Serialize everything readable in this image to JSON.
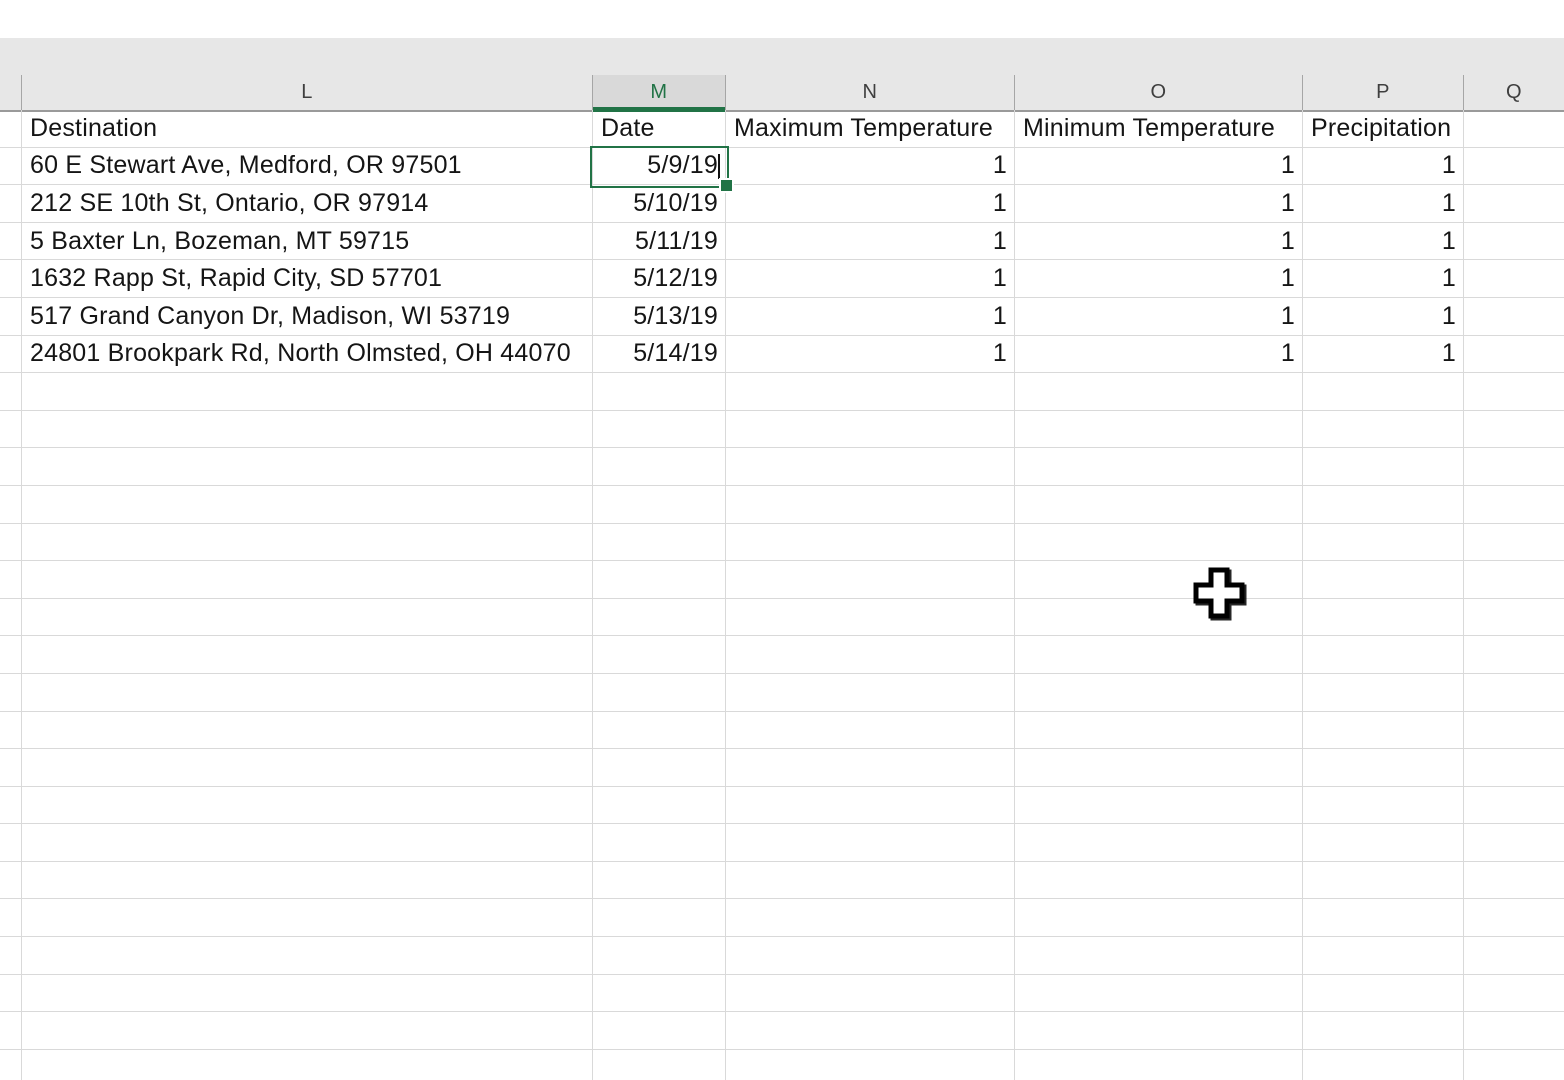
{
  "colors": {
    "selection_green": "#217346",
    "header_band_bg": "#e7e7e7",
    "selected_column_header_bg": "#d9d9d9",
    "gridline": "#d9d9d9",
    "header_bottom_border": "#9a9a9a",
    "cell_text": "#151515",
    "column_letter_text": "#3f3f3f"
  },
  "column_headers": {
    "letters": [
      "L",
      "M",
      "N",
      "O",
      "P",
      "Q"
    ],
    "selected": "M"
  },
  "sheet": {
    "field_headers": {
      "destination": "Destination",
      "date": "Date",
      "max_temp": "Maximum Temperature",
      "min_temp": "Minimum Temperature",
      "precipitation": "Precipitation"
    },
    "rows": [
      {
        "destination": "60 E Stewart Ave, Medford, OR 97501",
        "date": "5/9/19",
        "max_temp": "1",
        "min_temp": "1",
        "precipitation": "1"
      },
      {
        "destination": "212 SE 10th St, Ontario, OR 97914",
        "date": "5/10/19",
        "max_temp": "1",
        "min_temp": "1",
        "precipitation": "1"
      },
      {
        "destination": "5 Baxter Ln, Bozeman, MT 59715",
        "date": "5/11/19",
        "max_temp": "1",
        "min_temp": "1",
        "precipitation": "1"
      },
      {
        "destination": "1632 Rapp St, Rapid City, SD 57701",
        "date": "5/12/19",
        "max_temp": "1",
        "min_temp": "1",
        "precipitation": "1"
      },
      {
        "destination": "517 Grand Canyon Dr, Madison, WI 53719",
        "date": "5/13/19",
        "max_temp": "1",
        "min_temp": "1",
        "precipitation": "1"
      },
      {
        "destination": "24801 Brookpark Rd, North Olmsted, OH 44070",
        "date": "5/14/19",
        "max_temp": "1",
        "min_temp": "1",
        "precipitation": "1"
      }
    ],
    "selected_cell": {
      "column": "M",
      "value": "5/9/19",
      "has_edit_caret": true,
      "has_fill_handle": true
    },
    "empty_row_count": 19
  },
  "cursor": {
    "type": "excel-plus-cursor"
  }
}
